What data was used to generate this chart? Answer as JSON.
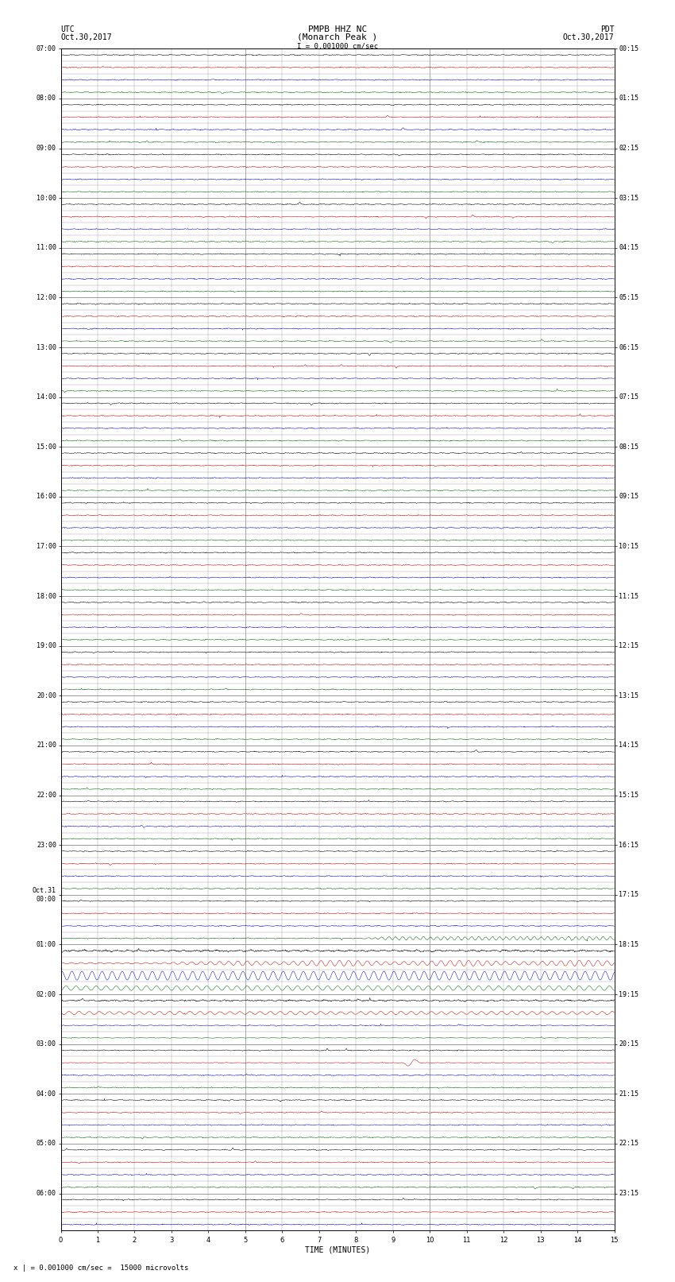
{
  "title_line1": "PMPB HHZ NC",
  "title_line2": "(Monarch Peak )",
  "scale_label": "I = 0.001000 cm/sec",
  "footer_label": "x | = 0.001000 cm/sec =  15000 microvolts",
  "xlabel": "TIME (MINUTES)",
  "left_times": [
    "07:00",
    "",
    "",
    "",
    "08:00",
    "",
    "",
    "",
    "09:00",
    "",
    "",
    "",
    "10:00",
    "",
    "",
    "",
    "11:00",
    "",
    "",
    "",
    "12:00",
    "",
    "",
    "",
    "13:00",
    "",
    "",
    "",
    "14:00",
    "",
    "",
    "",
    "15:00",
    "",
    "",
    "",
    "16:00",
    "",
    "",
    "",
    "17:00",
    "",
    "",
    "",
    "18:00",
    "",
    "",
    "",
    "19:00",
    "",
    "",
    "",
    "20:00",
    "",
    "",
    "",
    "21:00",
    "",
    "",
    "",
    "22:00",
    "",
    "",
    "",
    "23:00",
    "",
    "",
    "",
    "Oct.31\n00:00",
    "",
    "",
    "",
    "01:00",
    "",
    "",
    "",
    "02:00",
    "",
    "",
    "",
    "03:00",
    "",
    "",
    "",
    "04:00",
    "",
    "",
    "",
    "05:00",
    "",
    "",
    "",
    "06:00",
    "",
    ""
  ],
  "right_times": [
    "00:15",
    "",
    "",
    "",
    "01:15",
    "",
    "",
    "",
    "02:15",
    "",
    "",
    "",
    "03:15",
    "",
    "",
    "",
    "04:15",
    "",
    "",
    "",
    "05:15",
    "",
    "",
    "",
    "06:15",
    "",
    "",
    "",
    "07:15",
    "",
    "",
    "",
    "08:15",
    "",
    "",
    "",
    "09:15",
    "",
    "",
    "",
    "10:15",
    "",
    "",
    "",
    "11:15",
    "",
    "",
    "",
    "12:15",
    "",
    "",
    "",
    "13:15",
    "",
    "",
    "",
    "14:15",
    "",
    "",
    "",
    "15:15",
    "",
    "",
    "",
    "16:15",
    "",
    "",
    "",
    "17:15",
    "",
    "",
    "",
    "18:15",
    "",
    "",
    "",
    "19:15",
    "",
    "",
    "",
    "20:15",
    "",
    "",
    "",
    "21:15",
    "",
    "",
    "",
    "22:15",
    "",
    "",
    "",
    "23:15",
    "",
    ""
  ],
  "n_rows": 95,
  "n_cols": 15,
  "bg_color": "#ffffff",
  "colors": [
    "#000000",
    "#cc0000",
    "#0000cc",
    "#006600"
  ],
  "grid_color": "#888888",
  "font_color": "#000000",
  "title_fontsize": 8,
  "label_fontsize": 7,
  "tick_fontsize": 6
}
